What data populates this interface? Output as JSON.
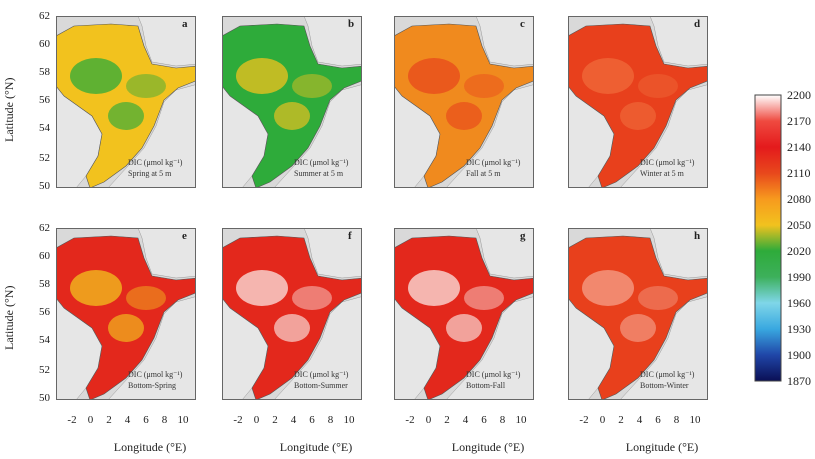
{
  "figure": {
    "y_axis_label": "Latitude (°N)",
    "x_axis_label": "Longitude (°E)",
    "y_ticks": [
      "62",
      "60",
      "58",
      "56",
      "54",
      "52",
      "50"
    ],
    "x_ticks": [
      "-2",
      "0",
      "2",
      "4",
      "6",
      "8",
      "10"
    ]
  },
  "colorbar": {
    "ticks": [
      "2200",
      "2170",
      "2140",
      "2110",
      "2080",
      "2050",
      "2020",
      "1990",
      "1960",
      "1930",
      "1900",
      "1870"
    ],
    "colors": [
      "#ffffff",
      "#ef4a40",
      "#e41a1c",
      "#e8481c",
      "#f79a1e",
      "#f2c21e",
      "#2eab3a",
      "#3db05b",
      "#7fd6e8",
      "#39a8e0",
      "#2046a8",
      "#0a0f55"
    ]
  },
  "panels": [
    {
      "letter": "a",
      "cap1": "DIC (μmol kg⁻¹)",
      "cap2": "Spring at 5 m",
      "fill": "#f2c21e",
      "accent": "#2eab3a"
    },
    {
      "letter": "b",
      "cap1": "DIC (μmol kg⁻¹)",
      "cap2": "Summer at 5 m",
      "fill": "#2eab3a",
      "accent": "#f2c21e"
    },
    {
      "letter": "c",
      "cap1": "DIC (μmol kg⁻¹)",
      "cap2": "Fall at 5 m",
      "fill": "#f08a1e",
      "accent": "#e8481c"
    },
    {
      "letter": "d",
      "cap1": "DIC (μmol kg⁻¹)",
      "cap2": "Winter at 5 m",
      "fill": "#e8401c",
      "accent": "#f06a3a"
    },
    {
      "letter": "e",
      "cap1": "DIC (μmol kg⁻¹)",
      "cap2": "Bottom-Spring",
      "fill": "#e3281c",
      "accent": "#f2c21e"
    },
    {
      "letter": "f",
      "cap1": "DIC (μmol kg⁻¹)",
      "cap2": "Bottom-Summer",
      "fill": "#e3281c",
      "accent": "#fbe4e0"
    },
    {
      "letter": "g",
      "cap1": "DIC (μmol kg⁻¹)",
      "cap2": "Bottom-Fall",
      "fill": "#e3281c",
      "accent": "#fbe4e0"
    },
    {
      "letter": "h",
      "cap1": "DIC (μmol kg⁻¹)",
      "cap2": "Bottom-Winter",
      "fill": "#e8401c",
      "accent": "#f5a08a"
    }
  ]
}
